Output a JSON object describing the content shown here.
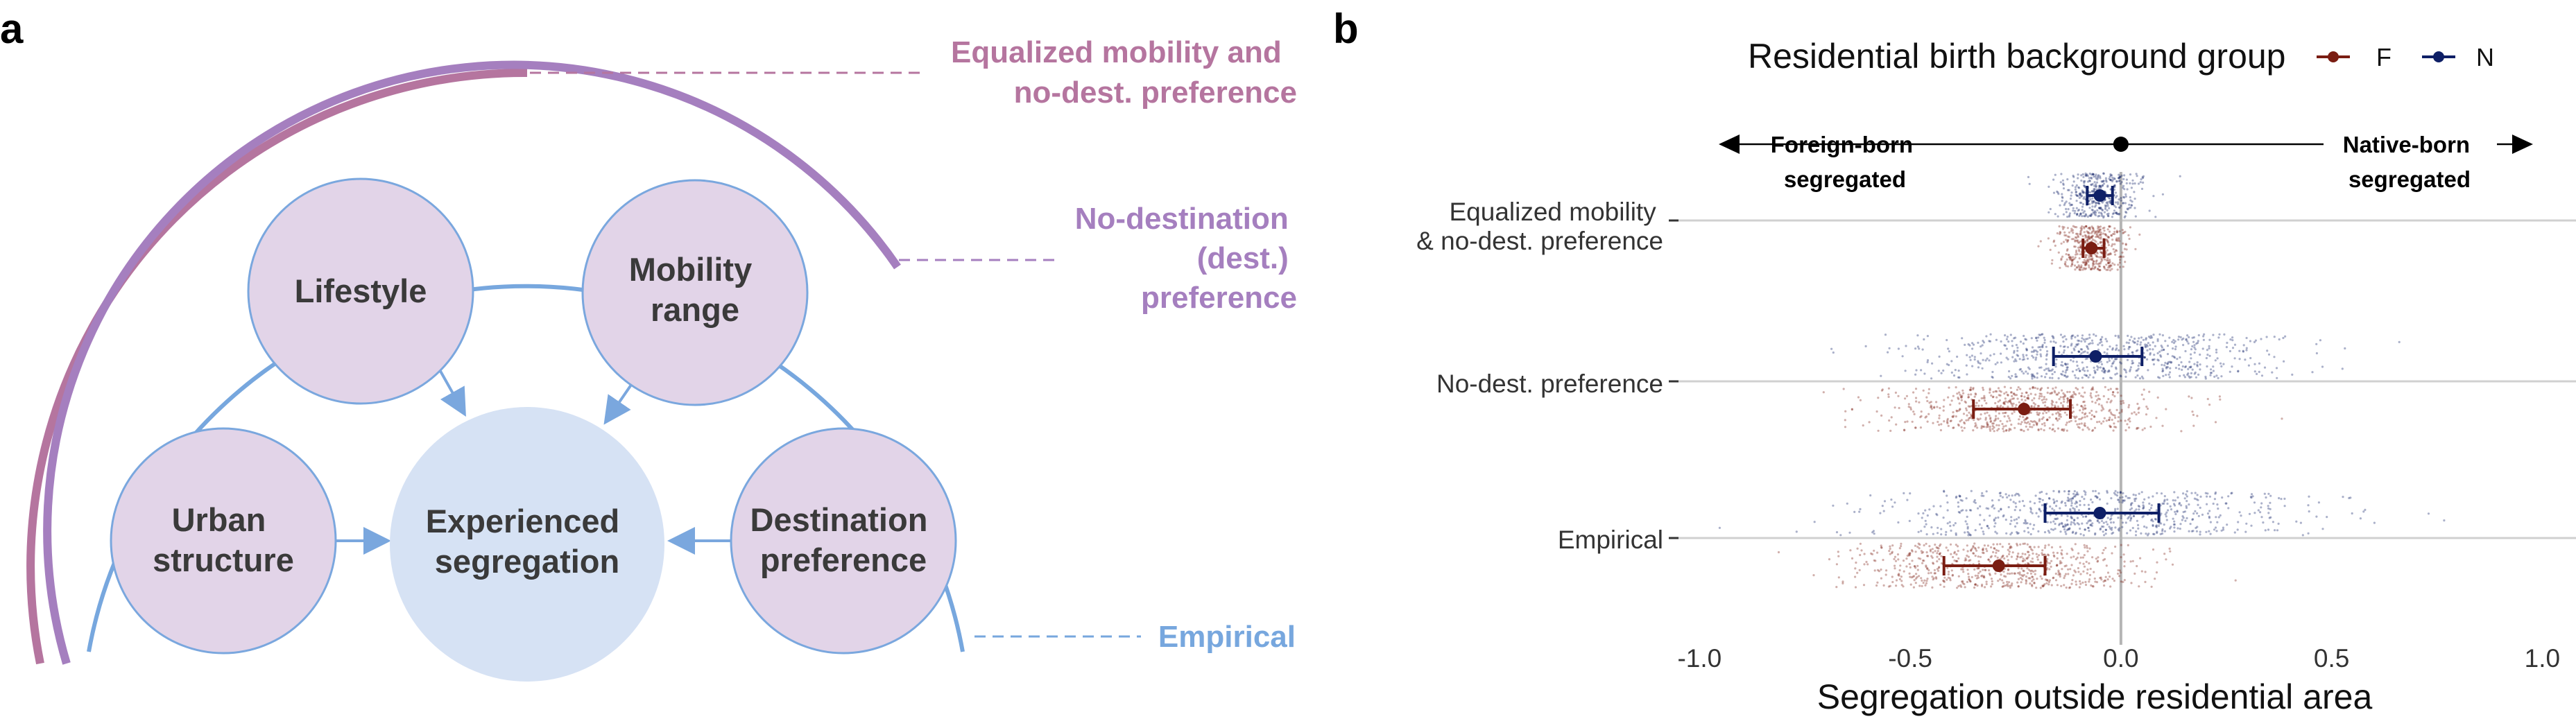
{
  "panels": {
    "a": "a",
    "b": "b"
  },
  "diagram": {
    "arcs": [
      {
        "label_lines": [
          "Equalized mobility and",
          "no-dest. preference"
        ],
        "color": "#b5759f"
      },
      {
        "label_lines": [
          "No-destination",
          "(dest.)",
          "preference"
        ],
        "color": "#a57fbf"
      },
      {
        "label_lines": [
          "Empirical"
        ],
        "color": "#77a7de"
      }
    ],
    "nodes": {
      "lifestyle": [
        "Lifestyle"
      ],
      "mobility": [
        "Mobility",
        "range"
      ],
      "urban": [
        "Urban",
        "structure"
      ],
      "destination": [
        "Destination",
        "preference"
      ],
      "center": [
        "Experienced",
        "segregation"
      ]
    },
    "colors": {
      "node_fill": "#e2d4e8",
      "node_stroke": "#7aa7de",
      "center_fill": "#d6e2f4",
      "arrow": "#7aa7de"
    }
  },
  "chart_data": {
    "type": "scatter",
    "legend": {
      "title": "Residential birth background group",
      "placement": "top",
      "items": [
        {
          "key": "F",
          "color": "#7a1d12"
        },
        {
          "key": "N",
          "color": "#0e1f66"
        }
      ]
    },
    "xlabel": "Segregation outside residential area",
    "xlim": [
      -1.05,
      1.08
    ],
    "xticks": [
      "-1.0",
      "-0.5",
      "0.0",
      "0.5",
      "1.0"
    ],
    "xtick_values": [
      -1.0,
      -0.5,
      0.0,
      0.5,
      1.0
    ],
    "categories": [
      "Equalized mobility & no-dest. preference",
      "No-dest. preference",
      "Empirical"
    ],
    "category_lines": [
      [
        "Equalized mobility",
        "& no-dest. preference"
      ],
      [
        "No-dest. preference"
      ],
      [
        "Empirical"
      ]
    ],
    "direction": {
      "left": [
        "Foreign-born",
        "segregated"
      ],
      "right": [
        "Native-born",
        "segregated"
      ],
      "center_value": 0.0
    },
    "series": [
      {
        "name": "N",
        "color": "#0e1f66",
        "mean": [
          -0.05,
          -0.06,
          -0.05
        ],
        "ci_low": [
          -0.08,
          -0.16,
          -0.18
        ],
        "ci_high": [
          -0.02,
          0.05,
          0.09
        ],
        "spread_sd": [
          0.05,
          0.22,
          0.24
        ]
      },
      {
        "name": "F",
        "color": "#7a1d12",
        "mean": [
          -0.07,
          -0.23,
          -0.29
        ],
        "ci_low": [
          -0.09,
          -0.35,
          -0.42
        ],
        "ci_high": [
          -0.04,
          -0.12,
          -0.18
        ],
        "spread_sd": [
          0.04,
          0.16,
          0.17
        ]
      }
    ]
  }
}
